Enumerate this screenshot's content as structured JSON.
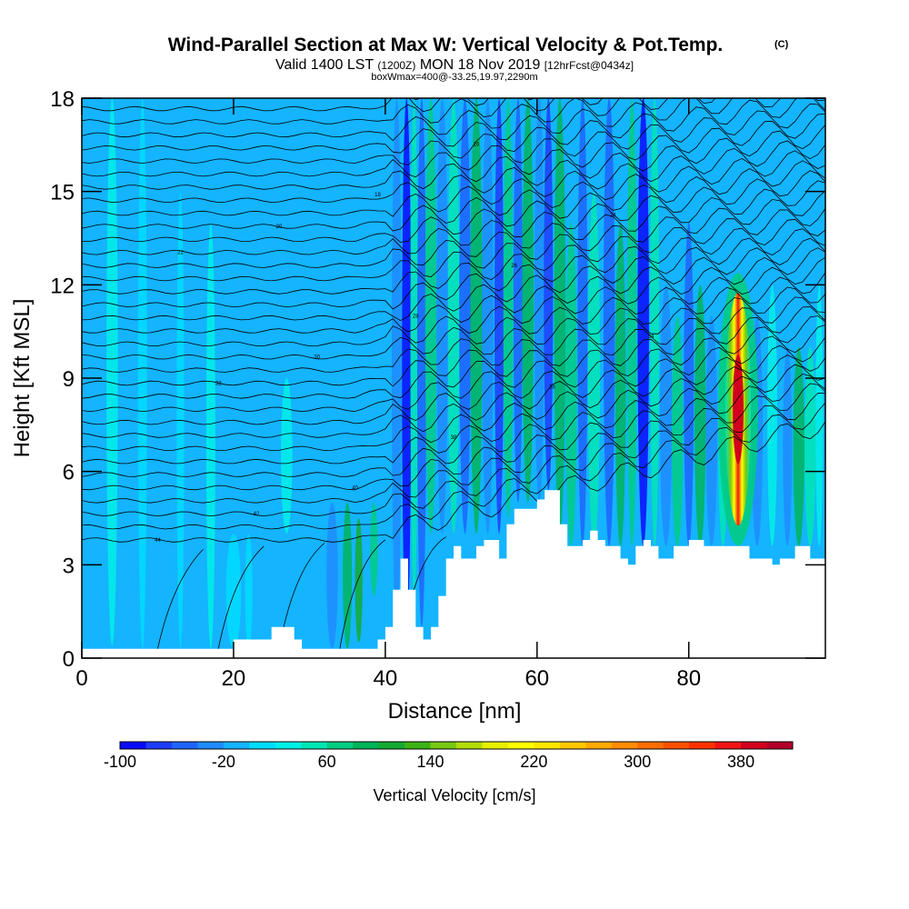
{
  "chart_data": {
    "type": "heatmap",
    "title": "Wind-Parallel Section at Max W: Vertical Velocity & Pot.Temp.",
    "title_mark": "(C)",
    "subtitle_a": "Valid 1400 LST",
    "subtitle_utc": "(1200Z)",
    "subtitle_b": "MON 18 Nov 2019",
    "subtitle_fcst": "[12hrFcst@0434z]",
    "subtitle2": "boxWmax=400@-33.25,19.97,2290m",
    "xlabel": "Distance [nm]",
    "ylabel": "Height [Kft MSL]",
    "xlim": [
      0,
      98
    ],
    "ylim": [
      0,
      18
    ],
    "xticks": [
      0,
      20,
      40,
      60,
      80
    ],
    "yticks": [
      0,
      3,
      6,
      9,
      12,
      15,
      18
    ],
    "colorbar": {
      "label": "Vertical Velocity [cm/s]",
      "tick_labels": [
        "-100",
        "-20",
        "60",
        "140",
        "220",
        "300",
        "380"
      ],
      "tick_values": [
        -100,
        -20,
        60,
        140,
        220,
        300,
        380
      ],
      "min": -100,
      "max": 420,
      "colors": [
        "#0a0aff",
        "#1e3cff",
        "#1e64ff",
        "#1e8cff",
        "#14b4ff",
        "#00dcff",
        "#00f0e6",
        "#00e6b4",
        "#00cc82",
        "#00b45a",
        "#14aa32",
        "#3cb414",
        "#78c814",
        "#b4dc0a",
        "#e6f000",
        "#ffff00",
        "#ffe600",
        "#ffc800",
        "#ffaa00",
        "#ff8c00",
        "#ff6e00",
        "#ff5000",
        "#ff3200",
        "#f01414",
        "#d2001e",
        "#b40028"
      ]
    },
    "terrain_profile": {
      "x": [
        0,
        19,
        20,
        24,
        25,
        26,
        28,
        29,
        30,
        34,
        38,
        39,
        40,
        41,
        42,
        43,
        44,
        45,
        46,
        47,
        48,
        49,
        50,
        51,
        52,
        53,
        54,
        55,
        56,
        57,
        58,
        59,
        60,
        61,
        62,
        63,
        64,
        65,
        66,
        67,
        68,
        69,
        70,
        71,
        72,
        73,
        74,
        75,
        76,
        77,
        78,
        79,
        80,
        81,
        82,
        83,
        84,
        85,
        86,
        87,
        88,
        89,
        90,
        91,
        92,
        93,
        94,
        95,
        96,
        98
      ],
      "height_kft": [
        0.3,
        0.3,
        0.6,
        0.6,
        1.0,
        1.0,
        0.6,
        0.3,
        0.3,
        0.3,
        0.3,
        0.6,
        1.0,
        2.2,
        3.2,
        2.2,
        1.0,
        0.6,
        1.0,
        2.0,
        3.2,
        3.6,
        3.2,
        3.2,
        3.6,
        3.8,
        3.8,
        3.2,
        4.3,
        4.8,
        4.8,
        4.8,
        5.1,
        5.4,
        5.4,
        4.3,
        3.6,
        3.6,
        3.8,
        4.1,
        3.8,
        3.6,
        3.6,
        3.2,
        3.0,
        3.6,
        3.8,
        3.6,
        3.2,
        3.2,
        3.6,
        3.6,
        3.8,
        3.8,
        3.6,
        3.6,
        3.6,
        3.6,
        3.6,
        3.6,
        3.2,
        3.2,
        3.2,
        3.0,
        3.2,
        3.2,
        3.6,
        3.6,
        3.2,
        3.2
      ]
    },
    "updraft_max": {
      "value_cm_s": 400,
      "x_nm": 86.5,
      "height_kft": 8.0
    },
    "theta_contour_labels": [
      "44",
      "42",
      "40",
      "38",
      "36",
      "34",
      "32",
      "30",
      "28",
      "26",
      "24",
      "22",
      "20",
      "18",
      "16",
      "14",
      "12"
    ]
  }
}
